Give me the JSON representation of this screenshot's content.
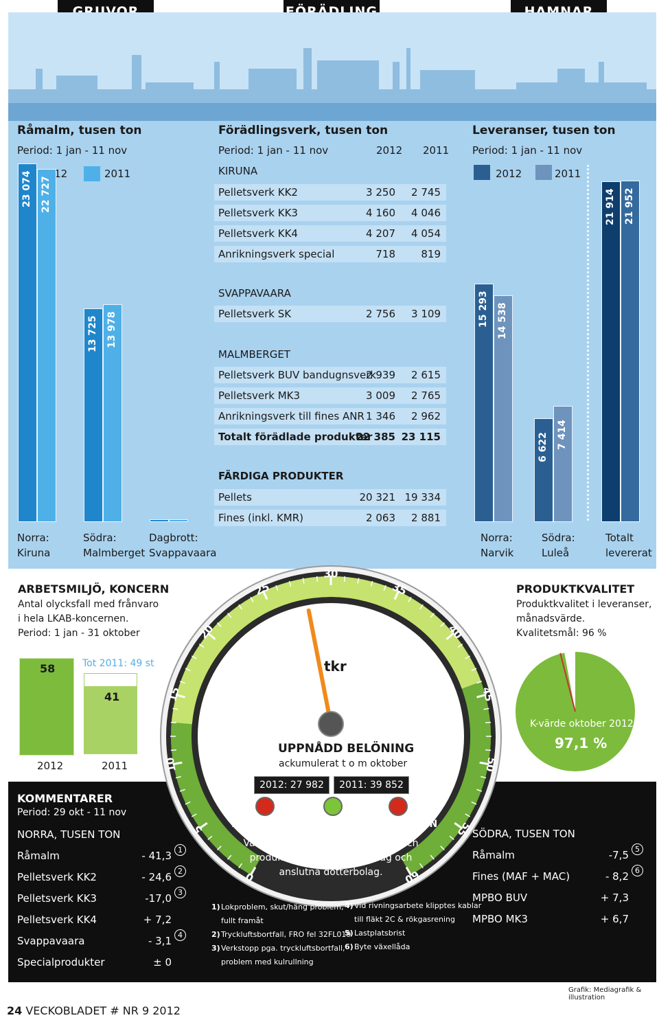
{
  "headers": [
    "GRUVOR",
    "FÖRÄDLING",
    "HAMNAR"
  ],
  "ramalm": {
    "title": "Råmalm, tusen ton",
    "period": "Period: 1 jan - 11 nov",
    "legend": [
      "2012",
      "2011"
    ],
    "groups": [
      {
        "label": "Norra:",
        "sub": "Kiruna",
        "v2012": 23074,
        "v2011": 22727,
        "t2012": "23 074",
        "t2011": "22 727"
      },
      {
        "label": "Södra:",
        "sub": "Malmberget",
        "v2012": 13725,
        "v2011": 13978,
        "t2012": "13 725",
        "t2011": "13 978"
      },
      {
        "label": "Dagbrott:",
        "sub": "Svappavaara",
        "v2012": 0,
        "v2011": 0,
        "t2012": "",
        "t2011": ""
      }
    ]
  },
  "foradling": {
    "title": "Förädlingsverk, tusen ton",
    "period": "Period: 1 jan - 11 nov",
    "col2012": "2012",
    "col2011": "2011",
    "kiruna": "KIRUNA",
    "kiruna_rows": [
      {
        "name": "Pelletsverk KK2",
        "a": "3 250",
        "b": "2 745"
      },
      {
        "name": "Pelletsverk KK3",
        "a": "4 160",
        "b": "4 046"
      },
      {
        "name": "Pelletsverk KK4",
        "a": "4 207",
        "b": "4 054"
      },
      {
        "name": "Anrikningsverk special",
        "a": "718",
        "b": "819"
      }
    ],
    "svappavaara": "SVAPPAVAARA",
    "svapp_rows": [
      {
        "name": "Pelletsverk SK",
        "a": "2 756",
        "b": "3 109"
      }
    ],
    "malmberget": "MALMBERGET",
    "malm_rows": [
      {
        "name": "Pelletsverk BUV bandugnsverk",
        "a": "2 939",
        "b": "2 615"
      },
      {
        "name": "Pelletsverk MK3",
        "a": "3 009",
        "b": "2 765"
      },
      {
        "name": "Anrikningsverk till fines ANR",
        "a": "1 346",
        "b": "2 962"
      },
      {
        "name": "Totalt förädlade produkter",
        "a": "22 385",
        "b": "23 115"
      }
    ],
    "fardiga": "FÄRDIGA PRODUKTER",
    "fardiga_rows": [
      {
        "name": "Pellets",
        "a": "20 321",
        "b": "19 334"
      },
      {
        "name": "Fines (inkl. KMR)",
        "a": "2 063",
        "b": "2 881"
      }
    ]
  },
  "leveranser": {
    "title": "Leveranser, tusen ton",
    "period": "Period: 1 jan - 11 nov",
    "legend": [
      "2012",
      "2011"
    ],
    "groups": [
      {
        "label": "Norra:",
        "sub": "Narvik",
        "v2012": 15293,
        "v2011": 14538,
        "t2012": "15 293",
        "t2011": "14 538"
      },
      {
        "label": "Södra:",
        "sub": "Luleå",
        "v2012": 6622,
        "v2011": 7414,
        "t2012": "6 622",
        "t2011": "7 414"
      },
      {
        "label": "Totalt",
        "sub": "levererat",
        "v2012": 21914,
        "v2011": 21952,
        "t2012": "21 914",
        "t2011": "21 952"
      }
    ]
  },
  "arbetsmiljo": {
    "title": "ARBETSMILJÖ, KONCERN",
    "desc1": "Antal olycksfall med frånvaro",
    "desc2": "i hela LKAB-koncernen.",
    "period": "Period: 1 jan - 31 oktober",
    "v2012": 58,
    "v2011": 41,
    "tot2011_value": 49,
    "t2012": "58",
    "t2011": "41",
    "tot_label": "Tot 2011: 49 st",
    "year2012": "2012",
    "year2011": "2011"
  },
  "gauge": {
    "unit": "tkr",
    "ticks": [
      "0",
      "5",
      "10",
      "15",
      "20",
      "25",
      "30",
      "35",
      "40",
      "45",
      "50",
      "55",
      "60"
    ],
    "needle_value": 28,
    "title": "UPPNÅDD BELÖNING",
    "subtitle": "ackumulerat t o m oktober",
    "box2012": "2012: 27 982 kr",
    "box2011": "2011: 39 852 kr",
    "lights": [
      {
        "label": "ARBETSMILJÖ",
        "color": "#d42a1c"
      },
      {
        "label": "KVALITET",
        "color": "#7cc43a"
      },
      {
        "label": "PRODUKTION",
        "color": "#d42a1c"
      }
    ],
    "note1": "Värdena för arbetsmiljö, kvalitet och",
    "note2": "produktion avser moderbolag och",
    "note3": "anslutna dotterbolag."
  },
  "produktkvalitet": {
    "title": "PRODUKTKVALITET",
    "desc1": "Produktkvalitet i leveranser,",
    "desc2": "månadsvärde.",
    "desc3": "Kvalitetsmål: 96 %",
    "kvalue_label": "K-värde oktober 2012:",
    "kvalue": "97,1 %",
    "kvalue_num": 97.1,
    "target_num": 96
  },
  "kommentarer": {
    "title": "KOMMENTARER",
    "period": "Period: 29 okt - 11 nov",
    "norra_title": "NORRA, TUSEN TON",
    "norra": [
      {
        "name": "Råmalm",
        "value": "- 41,3",
        "note": "1"
      },
      {
        "name": "Pelletsverk KK2",
        "value": "- 24,6",
        "note": "2"
      },
      {
        "name": "Pelletsverk KK3",
        "value": "-17,0",
        "note": "3"
      },
      {
        "name": "Pelletsverk KK4",
        "value": "+ 7,2",
        "note": ""
      },
      {
        "name": "Svappavaara",
        "value": "- 3,1",
        "note": "4"
      },
      {
        "name": "Specialprodukter",
        "value": "± 0",
        "note": ""
      }
    ],
    "sodra_title": "SÖDRA, TUSEN TON",
    "sodra": [
      {
        "name": "Råmalm",
        "value": "-7,5",
        "note": "5"
      },
      {
        "name": "Fines (MAF + MAC)",
        "value": "- 8,2",
        "note": "6"
      },
      {
        "name": "MPBO BUV",
        "value": "+ 7,3",
        "note": ""
      },
      {
        "name": "MPBO MK3",
        "value": "+ 6,7",
        "note": ""
      }
    ],
    "footnotes_left": [
      {
        "n": "1)",
        "text": "Lokproblem, skut/häng problem,",
        "text2": "fullt framåt"
      },
      {
        "n": "2)",
        "text": "Tryckluftsbortfall, FRO fel 32FL019",
        "text2": ""
      },
      {
        "n": "3)",
        "text": "Verkstopp pga. tryckluftsbortfall,",
        "text2": "problem med kulrullning"
      }
    ],
    "footnotes_right": [
      {
        "n": "4)",
        "text": "Vid rivningsarbete klipptes kablar",
        "text2": "till fläkt 2C & rökgasrening"
      },
      {
        "n": "5)",
        "text": "Lastplatsbrist",
        "text2": ""
      },
      {
        "n": "6)",
        "text": "Byte växellåda",
        "text2": ""
      }
    ]
  },
  "footer": {
    "page": "24",
    "publication": "VECKOBLADET # NR 9 2012",
    "credit": "Grafik: Mediagrafik & illustration"
  },
  "colors": {
    "bar2012": "#1f86cc",
    "bar2011": "#4fb0e8",
    "lev2012": "#2b5f92",
    "lev2011": "#6e93bd",
    "total2012": "#0e3e6e",
    "total2011": "#346a9d",
    "green2012": "#7dbb3c",
    "green2011": "#a9d264"
  }
}
